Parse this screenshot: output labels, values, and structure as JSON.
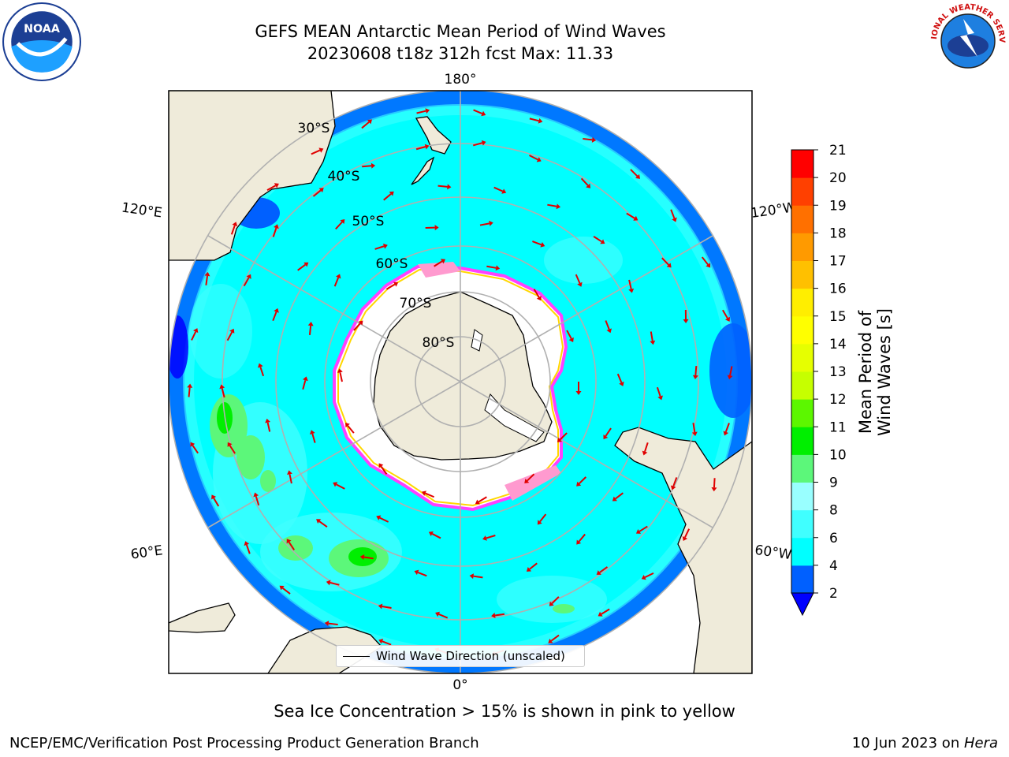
{
  "title": {
    "line1": "GEFS MEAN Antarctic Mean Period of Wind Waves",
    "line2": "20230608 t18z 312h fcst   Max: 11.33"
  },
  "logos": {
    "left": {
      "icon": "noaa-logo",
      "text": "NOAA"
    },
    "right": {
      "icon": "nws-logo",
      "text": "NATIONAL WEATHER SERVICE"
    }
  },
  "map": {
    "projection": "south-polar-stereographic",
    "longitude_labels": {
      "top": "180°",
      "bottom": "0°",
      "left_upper": "120°E",
      "left_lower": "60°E",
      "right_upper": "120°W",
      "right_lower": "60°W"
    },
    "latitude_labels": [
      "30°S",
      "40°S",
      "50°S",
      "60°S",
      "70°S",
      "80°S"
    ],
    "legend_label": "Wind Wave Direction (unscaled)",
    "colors": {
      "land": "#efebda",
      "sea_ice_white": "#ffffff",
      "sea_ice_edge": [
        "#ff40ff",
        "#ff9acf",
        "#ffd700"
      ],
      "arrow": "#e00000",
      "grid": "#b0b0b0"
    }
  },
  "colorbar": {
    "label": "Mean Period of Wind Waves [s]",
    "ticks": [
      "2",
      "4",
      "6",
      "8",
      "9",
      "10",
      "11",
      "12",
      "13",
      "14",
      "15",
      "16",
      "17",
      "18",
      "19",
      "20",
      "21"
    ],
    "colors": [
      "#0060ff",
      "#00ffff",
      "#40ffff",
      "#99ffff",
      "#5cf77a",
      "#00ef00",
      "#5cf700",
      "#c6ff00",
      "#e6ff00",
      "#ffff00",
      "#ffee00",
      "#ffc000",
      "#ff9a00",
      "#ff7000",
      "#ff4000",
      "#ff0000"
    ],
    "extend_color": "#0000ff"
  },
  "caption": "Sea Ice Concentration > 15% is shown in pink to yellow",
  "footer": {
    "left": "NCEP/EMC/Verification Post Processing Product Generation Branch",
    "right_date": "10 Jun 2023 on ",
    "right_host": "Hera"
  }
}
